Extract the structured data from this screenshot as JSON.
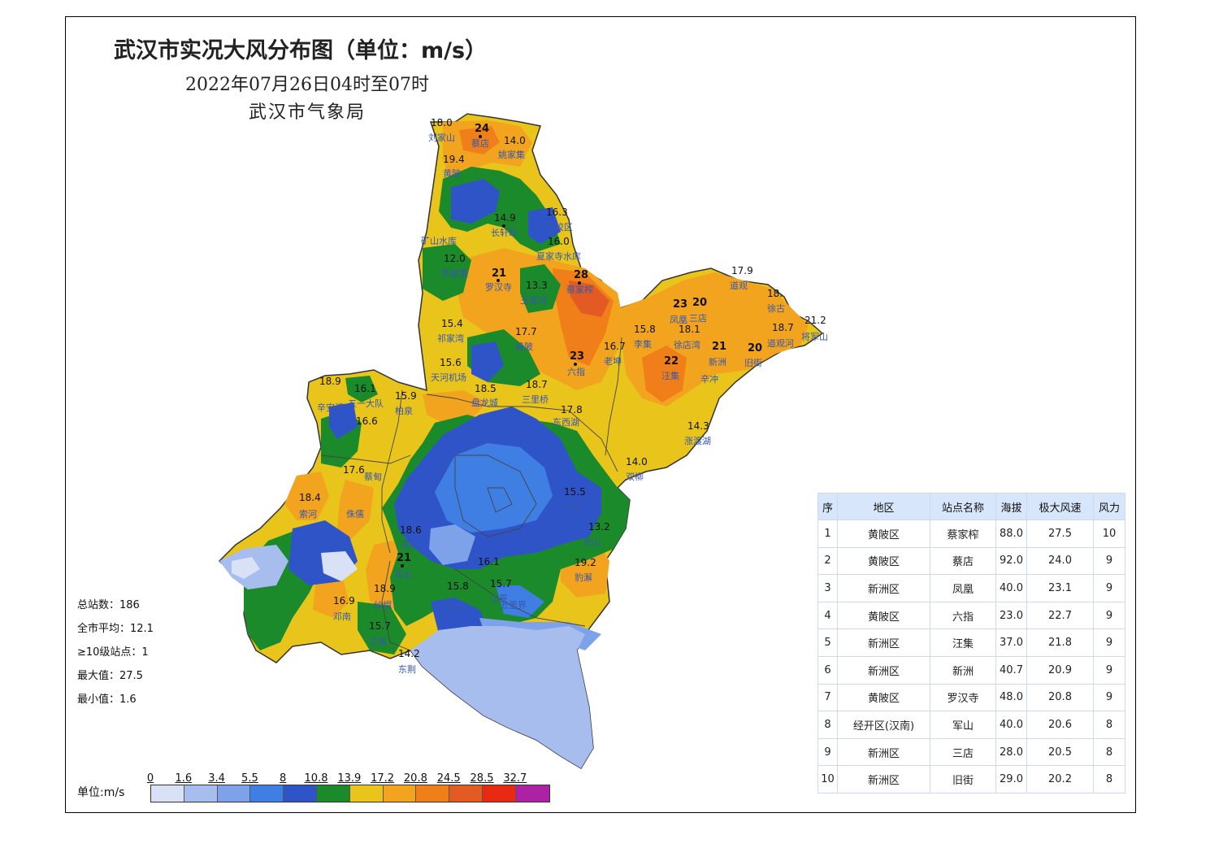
{
  "title": "武汉市实况大风分布图（单位：m/s）",
  "subtitle": "2022年07月26日04时至07时",
  "organization": "武汉市气象局",
  "stats": {
    "total_stations": "总站数：186",
    "city_average": "全市平均：12.1",
    "level10_stations": "≥10级站点：1",
    "max_value": "最大值：27.5",
    "min_value": "最小值：1.6"
  },
  "legend": {
    "unit_label": "单位:m/s",
    "ticks": [
      "0",
      "1.6",
      "3.4",
      "5.5",
      "8",
      "10.8",
      "13.9",
      "17.2",
      "20.8",
      "24.5",
      "28.5",
      "32.7"
    ],
    "colors": [
      "#d9e1f7",
      "#a7bdee",
      "#7ea2ea",
      "#3f7ee3",
      "#2f54c8",
      "#1b8a2a",
      "#e9c51c",
      "#f3a41f",
      "#f07f19",
      "#e35b22",
      "#e82a12",
      "#ad21a4"
    ]
  },
  "table": {
    "headers": [
      "序",
      "地区",
      "站点名称",
      "海拔",
      "极大风速",
      "风力"
    ],
    "rows": [
      [
        "1",
        "黄陂区",
        "蔡家榨",
        "88.0",
        "27.5",
        "10"
      ],
      [
        "2",
        "黄陂区",
        "蔡店",
        "92.0",
        "24.0",
        "9"
      ],
      [
        "3",
        "新洲区",
        "凤凰",
        "40.0",
        "23.1",
        "9"
      ],
      [
        "4",
        "黄陂区",
        "六指",
        "23.0",
        "22.7",
        "9"
      ],
      [
        "5",
        "新洲区",
        "汪集",
        "37.0",
        "21.8",
        "9"
      ],
      [
        "6",
        "新洲区",
        "新洲",
        "40.7",
        "20.9",
        "9"
      ],
      [
        "7",
        "黄陂区",
        "罗汉寺",
        "48.0",
        "20.8",
        "9"
      ],
      [
        "8",
        "经开区(汉南)",
        "军山",
        "40.0",
        "20.6",
        "8"
      ],
      [
        "9",
        "新洲区",
        "三店",
        "28.0",
        "20.5",
        "8"
      ],
      [
        "10",
        "新洲区",
        "旧街",
        "29.0",
        "20.2",
        "8"
      ]
    ]
  },
  "stations": [
    {
      "name": "蔡店",
      "value": "24"
    },
    {
      "name": "刘家山",
      "value": "18.0"
    },
    {
      "name": "姚家集",
      "value": "14.0"
    },
    {
      "name": "黄陂",
      "value": "19.4"
    },
    {
      "name": "长轩岭",
      "value": "14.9"
    },
    {
      "name": "芸校区",
      "value": "16.3"
    },
    {
      "name": "矿山水库",
      "value": ""
    },
    {
      "name": "夏家寺水库",
      "value": "16.0"
    },
    {
      "name": "李家集",
      "value": "12.0"
    },
    {
      "name": "罗汉寺",
      "value": "21"
    },
    {
      "name": "蔡家榨",
      "value": "28"
    },
    {
      "name": "王家河",
      "value": "13.3"
    },
    {
      "name": "道观",
      "value": "17.9"
    },
    {
      "name": "凤凰",
      "value": "23"
    },
    {
      "name": "三店",
      "value": "20"
    },
    {
      "name": "徐古",
      "value": "18."
    },
    {
      "name": "将军山",
      "value": "21.2"
    },
    {
      "name": "祁家湾",
      "value": "15.4"
    },
    {
      "name": "黄陂",
      "value": "17.7"
    },
    {
      "name": "李集",
      "value": "15.8"
    },
    {
      "name": "徐店湾",
      "value": "18.1"
    },
    {
      "name": "道观河",
      "value": "18.7"
    },
    {
      "name": "天河机场",
      "value": "15.6"
    },
    {
      "name": "六指",
      "value": "23"
    },
    {
      "name": "老坤",
      "value": "16.7"
    },
    {
      "name": "汪集",
      "value": "22"
    },
    {
      "name": "新洲",
      "value": "21"
    },
    {
      "name": "旧街",
      "value": "20"
    },
    {
      "name": "辛冲",
      "value": ""
    },
    {
      "name": "三里桥",
      "value": "18.7"
    },
    {
      "name": "盘龙城",
      "value": "18.5"
    },
    {
      "name": "柏泉",
      "value": "15.9"
    },
    {
      "name": "东西湖",
      "value": "17.8"
    },
    {
      "name": "涨渡湖",
      "value": "14.3"
    },
    {
      "name": "双柳",
      "value": "14.0"
    },
    {
      "name": "五一大队",
      "value": "16.1"
    },
    {
      "name": "辛安渡",
      "value": "18.9"
    },
    {
      "name": "蔡甸",
      "value": "16.6"
    },
    {
      "name": "索河",
      "value": "18.4"
    },
    {
      "name": "侏儒",
      "value": "17.6"
    },
    {
      "name": "军山",
      "value": "21"
    },
    {
      "name": "沌阳",
      "value": "18.6"
    },
    {
      "name": "纱帽",
      "value": "18.9"
    },
    {
      "name": "邓南",
      "value": "16.9"
    },
    {
      "name": "汉南",
      "value": "15.7"
    },
    {
      "name": "东荆",
      "value": "14.2"
    },
    {
      "name": "郑店",
      "value": "15.8"
    },
    {
      "name": "江夏",
      "value": "15.7"
    },
    {
      "name": "五里界",
      "value": "16.1"
    },
    {
      "name": "豹澥",
      "value": "19.2"
    },
    {
      "name": "花山",
      "value": "13.2"
    },
    {
      "name": "北湖",
      "value": "15.5"
    }
  ]
}
